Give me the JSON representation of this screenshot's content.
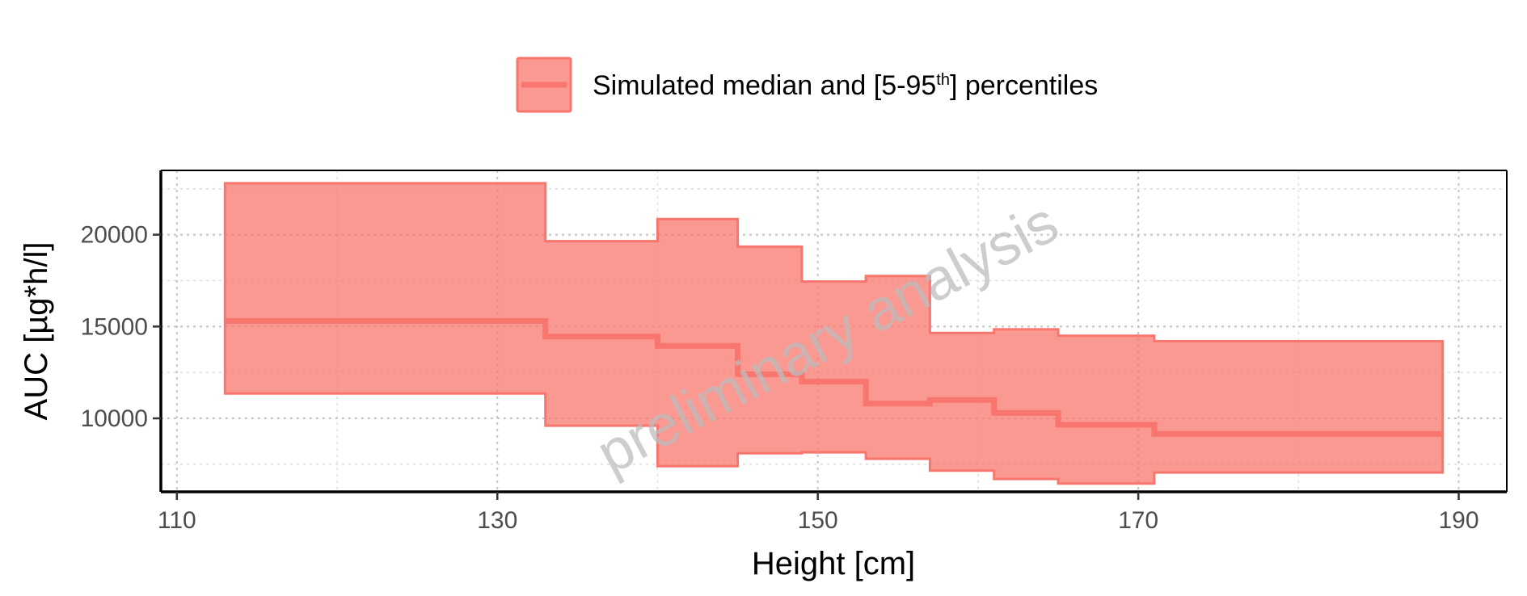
{
  "chart_data": {
    "type": "area",
    "xlabel": "Height [cm]",
    "ylabel": "AUC [µg*h/l]",
    "xlim": [
      109,
      193
    ],
    "ylim": [
      6000,
      23500
    ],
    "x_ticks": [
      110,
      130,
      150,
      170,
      190
    ],
    "y_ticks": [
      10000,
      15000,
      20000
    ],
    "x_minor": [
      120,
      140,
      160,
      180
    ],
    "y_minor": [
      7500,
      12500,
      17500,
      22500
    ],
    "grid": true,
    "legend": {
      "position": "top",
      "label_main": "Simulated median and [5-95",
      "label_sup": "th",
      "label_end": "] percentiles"
    },
    "watermark": "preliminary analysis",
    "colors": {
      "fill": "#f8766d",
      "line": "#f8766d"
    },
    "series": [
      {
        "name": "Simulated median and [5-95th] percentiles",
        "steps": [
          {
            "x0": 113,
            "x1": 133,
            "median": 15300,
            "p5": 11350,
            "p95": 22800
          },
          {
            "x0": 133,
            "x1": 140,
            "median": 14450,
            "p5": 9600,
            "p95": 19650
          },
          {
            "x0": 140,
            "x1": 145,
            "median": 13950,
            "p5": 7400,
            "p95": 20850
          },
          {
            "x0": 145,
            "x1": 149,
            "median": 12400,
            "p5": 8100,
            "p95": 19350
          },
          {
            "x0": 149,
            "x1": 153,
            "median": 12000,
            "p5": 8150,
            "p95": 17450
          },
          {
            "x0": 153,
            "x1": 157,
            "median": 10800,
            "p5": 7800,
            "p95": 17750
          },
          {
            "x0": 157,
            "x1": 161,
            "median": 11000,
            "p5": 7150,
            "p95": 14650
          },
          {
            "x0": 161,
            "x1": 165,
            "median": 10300,
            "p5": 6700,
            "p95": 14850
          },
          {
            "x0": 165,
            "x1": 171,
            "median": 9650,
            "p5": 6450,
            "p95": 14500
          },
          {
            "x0": 171,
            "x1": 189,
            "median": 9150,
            "p5": 7050,
            "p95": 14200
          }
        ]
      }
    ]
  }
}
